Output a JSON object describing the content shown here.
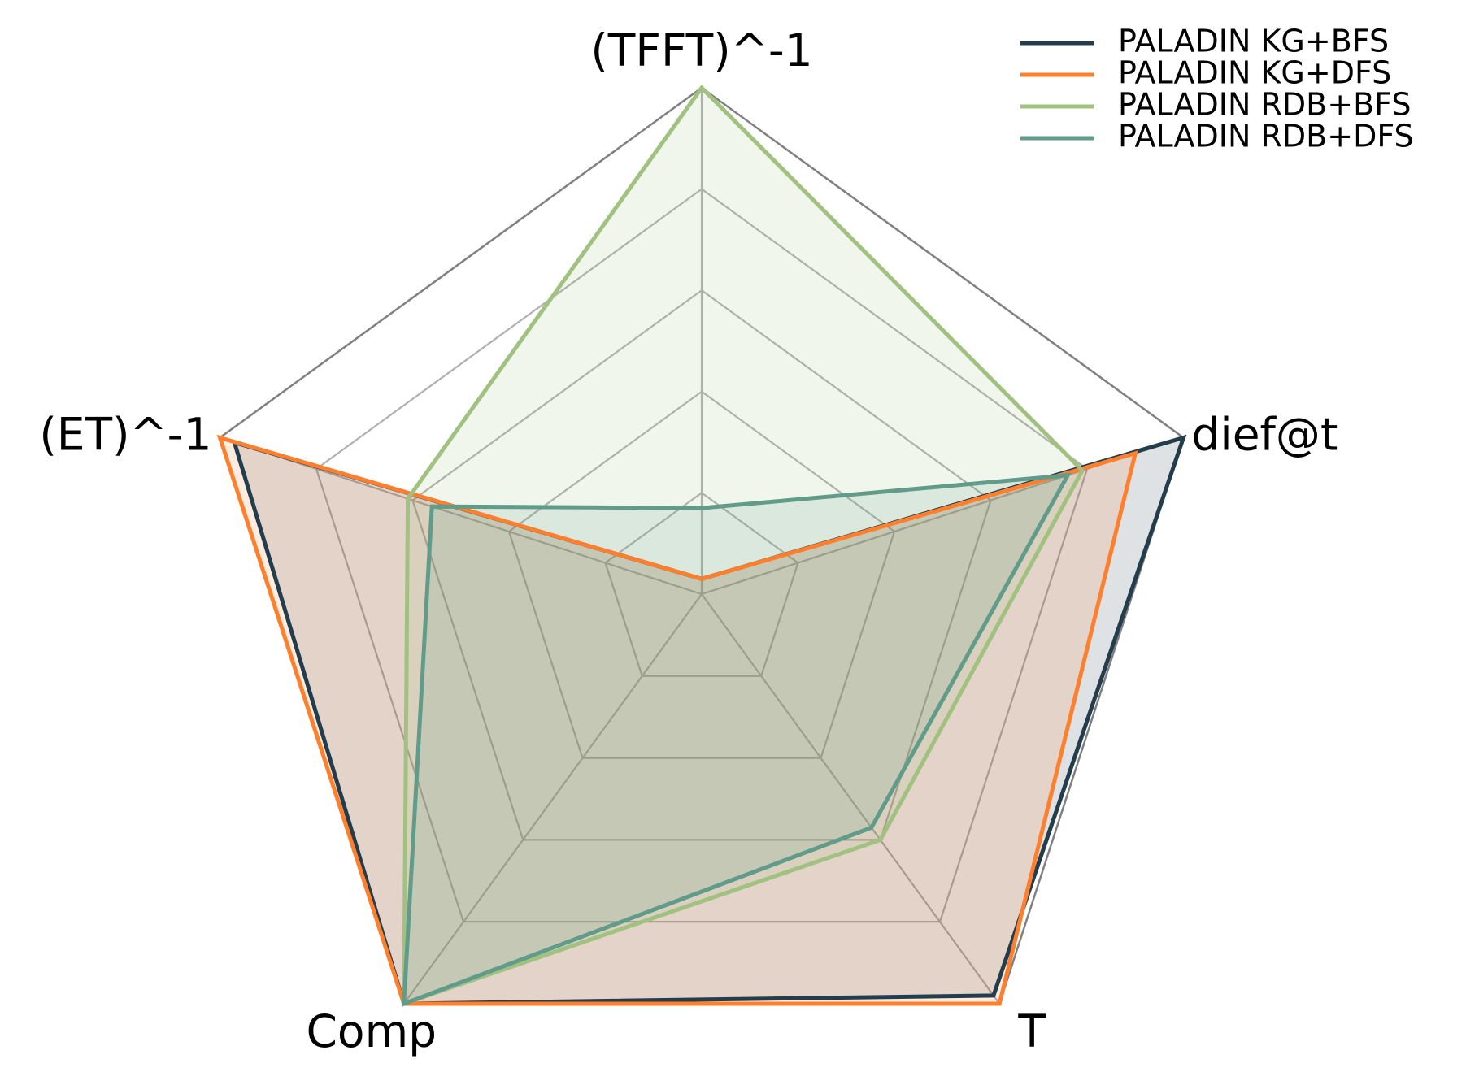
{
  "chart_data": {
    "type": "radar",
    "axes": [
      "(TFFT)^-1",
      "dief@t",
      "T",
      "Comp",
      "(ET)^-1"
    ],
    "range": [
      0,
      1
    ],
    "grid_levels": 5,
    "grid": true,
    "legend_position": "top-right",
    "series": [
      {
        "name": "PALADIN KG+BFS",
        "color": "#233d4d",
        "values": [
          0.03,
          1.0,
          0.98,
          1.0,
          0.97
        ]
      },
      {
        "name": "PALADIN KG+DFS",
        "color": "#fe7f2d",
        "values": [
          0.03,
          0.9,
          1.0,
          1.0,
          1.0
        ]
      },
      {
        "name": "PALADIN RDB+BFS",
        "color": "#a1c181",
        "values": [
          1.0,
          0.79,
          0.6,
          1.0,
          0.61
        ]
      },
      {
        "name": "PALADIN RDB+DFS",
        "color": "#619b8a",
        "values": [
          0.17,
          0.76,
          0.57,
          1.0,
          0.56
        ]
      }
    ]
  }
}
